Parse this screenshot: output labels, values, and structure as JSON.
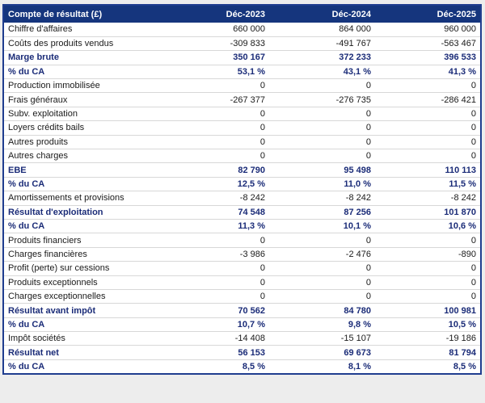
{
  "colors": {
    "header_bg": "#15357D",
    "header_text": "#FFFFFF",
    "accent_text": "#1B2C78",
    "body_text": "#1A1A1A",
    "row_divider": "#D8D8D8",
    "table_border": "#1F3D8F",
    "page_bg": "#EDEDED",
    "cell_bg": "#FFFFFF"
  },
  "table": {
    "header": {
      "label": "Compte de résultat (£)",
      "columns": [
        "Déc-2023",
        "Déc-2024",
        "Déc-2025"
      ]
    },
    "rows": [
      {
        "label": "Chiffre d'affaires",
        "values": [
          "660 000",
          "864 000",
          "960 000"
        ],
        "bold": false
      },
      {
        "label": "Coûts des produits vendus",
        "values": [
          "-309 833",
          "-491 767",
          "-563 467"
        ],
        "bold": false
      },
      {
        "label": "Marge brute",
        "values": [
          "350 167",
          "372 233",
          "396 533"
        ],
        "bold": true
      },
      {
        "label": "% du CA",
        "values": [
          "53,1 %",
          "43,1 %",
          "41,3 %"
        ],
        "bold": true
      },
      {
        "label": "Production immobilisée",
        "values": [
          "0",
          "0",
          "0"
        ],
        "bold": false
      },
      {
        "label": "Frais généraux",
        "values": [
          "-267 377",
          "-276 735",
          "-286 421"
        ],
        "bold": false
      },
      {
        "label": "Subv. exploitation",
        "values": [
          "0",
          "0",
          "0"
        ],
        "bold": false
      },
      {
        "label": "Loyers crédits bails",
        "values": [
          "0",
          "0",
          "0"
        ],
        "bold": false
      },
      {
        "label": "Autres produits",
        "values": [
          "0",
          "0",
          "0"
        ],
        "bold": false
      },
      {
        "label": "Autres charges",
        "values": [
          "0",
          "0",
          "0"
        ],
        "bold": false
      },
      {
        "label": "EBE",
        "values": [
          "82 790",
          "95 498",
          "110 113"
        ],
        "bold": true
      },
      {
        "label": "% du CA",
        "values": [
          "12,5 %",
          "11,0 %",
          "11,5 %"
        ],
        "bold": true
      },
      {
        "label": "Amortissements et provisions",
        "values": [
          "-8 242",
          "-8 242",
          "-8 242"
        ],
        "bold": false
      },
      {
        "label": "Résultat d'exploitation",
        "values": [
          "74 548",
          "87 256",
          "101 870"
        ],
        "bold": true
      },
      {
        "label": "% du CA",
        "values": [
          "11,3 %",
          "10,1 %",
          "10,6 %"
        ],
        "bold": true
      },
      {
        "label": "Produits financiers",
        "values": [
          "0",
          "0",
          "0"
        ],
        "bold": false
      },
      {
        "label": "Charges financières",
        "values": [
          "-3 986",
          "-2 476",
          "-890"
        ],
        "bold": false
      },
      {
        "label": "Profit (perte) sur cessions",
        "values": [
          "0",
          "0",
          "0"
        ],
        "bold": false
      },
      {
        "label": "Produits exceptionnels",
        "values": [
          "0",
          "0",
          "0"
        ],
        "bold": false
      },
      {
        "label": "Charges exceptionnelles",
        "values": [
          "0",
          "0",
          "0"
        ],
        "bold": false
      },
      {
        "label": "Résultat avant impôt",
        "values": [
          "70 562",
          "84 780",
          "100 981"
        ],
        "bold": true
      },
      {
        "label": "% du CA",
        "values": [
          "10,7 %",
          "9,8 %",
          "10,5 %"
        ],
        "bold": true
      },
      {
        "label": "Impôt sociétés",
        "values": [
          "-14 408",
          "-15 107",
          "-19 186"
        ],
        "bold": false
      },
      {
        "label": "Résultat net",
        "values": [
          "56 153",
          "69 673",
          "81 794"
        ],
        "bold": true
      },
      {
        "label": "% du CA",
        "values": [
          "8,5 %",
          "8,1 %",
          "8,5 %"
        ],
        "bold": true
      }
    ]
  }
}
